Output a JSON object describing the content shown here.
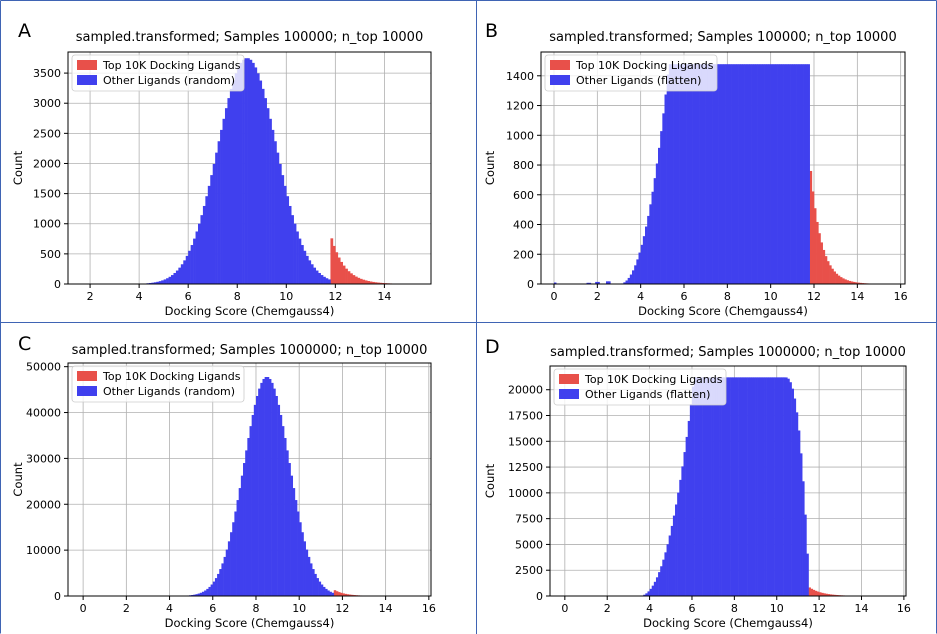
{
  "colors": {
    "top": "#e8504a",
    "other": "#4040ee",
    "grid": "#b0b0b0",
    "frame": "#3f64b4"
  },
  "chart_data": [
    {
      "panel_label": "A",
      "type": "bar",
      "title": "sampled.transformed; Samples 100000; n_top 10000",
      "xlabel": "Docking Score (Chemgauss4)",
      "ylabel": "Count",
      "xlim": [
        1.1,
        15.9
      ],
      "ylim": [
        0,
        3850
      ],
      "xticks": [
        "2",
        "4",
        "6",
        "8",
        "10",
        "12",
        "14"
      ],
      "xtick_values": [
        2,
        4,
        6,
        8,
        10,
        12,
        14
      ],
      "yticks": [
        "0",
        "500",
        "1000",
        "1500",
        "2000",
        "2500",
        "3000",
        "3500"
      ],
      "ytick_values": [
        0,
        500,
        1000,
        1500,
        2000,
        2500,
        3000,
        3500
      ],
      "grid": true,
      "legend_position": "top-left",
      "series": [
        {
          "name": "Top 10K Docking Ligands",
          "color_key": "top",
          "kind": "tail",
          "range": [
            11.8,
            15.2
          ],
          "peak": 830,
          "decay": 0.55
        },
        {
          "name": "Other Ligands (random)",
          "color_key": "other",
          "kind": "gauss",
          "range": [
            4.3,
            11.8
          ],
          "mean": 8.4,
          "sd": 1.2,
          "peak": 3750
        }
      ]
    },
    {
      "panel_label": "B",
      "type": "bar",
      "title": "sampled.transformed; Samples 100000; n_top 10000",
      "xlabel": "Docking Score (Chemgauss4)",
      "ylabel": "Count",
      "xlim": [
        -0.6,
        16.2
      ],
      "ylim": [
        0,
        1560
      ],
      "xticks": [
        "0",
        "2",
        "4",
        "6",
        "8",
        "10",
        "12",
        "14",
        "16"
      ],
      "xtick_values": [
        0,
        2,
        4,
        6,
        8,
        10,
        12,
        14,
        16
      ],
      "yticks": [
        "0",
        "200",
        "400",
        "600",
        "800",
        "1000",
        "1200",
        "1400"
      ],
      "ytick_values": [
        0,
        200,
        400,
        600,
        800,
        1000,
        1200,
        1400
      ],
      "grid": true,
      "legend_position": "top-left",
      "series": [
        {
          "name": "Top 10K Docking Ligands",
          "color_key": "top",
          "kind": "tail",
          "range": [
            11.8,
            15.2
          ],
          "peak": 840,
          "decay": 0.5
        },
        {
          "name": "Other Ligands (flatten)",
          "color_key": "other",
          "kind": "plateau",
          "range": [
            0,
            11.8
          ],
          "plateau": 1478,
          "rise_start": 3.0,
          "rise_end": 5.3,
          "sparse": [
            [
              0.0,
              10
            ],
            [
              1.6,
              8
            ],
            [
              2.0,
              14
            ],
            [
              2.5,
              18
            ]
          ]
        }
      ]
    },
    {
      "panel_label": "C",
      "type": "bar",
      "title": "sampled.transformed; Samples 1000000; n_top 10000",
      "xlabel": "Docking Score (Chemgauss4)",
      "ylabel": "Count",
      "xlim": [
        -0.7,
        16.1
      ],
      "ylim": [
        0,
        50800
      ],
      "xticks": [
        "0",
        "2",
        "4",
        "6",
        "8",
        "10",
        "12",
        "14",
        "16"
      ],
      "xtick_values": [
        0,
        2,
        4,
        6,
        8,
        10,
        12,
        14,
        16
      ],
      "yticks": [
        "0",
        "10000",
        "20000",
        "30000",
        "40000",
        "50000"
      ],
      "ytick_values": [
        0,
        10000,
        20000,
        30000,
        40000,
        50000
      ],
      "grid": true,
      "legend_position": "top-left",
      "series": [
        {
          "name": "Top 10K Docking Ligands",
          "color_key": "top",
          "kind": "tail",
          "range": [
            11.6,
            13.5
          ],
          "peak": 1400,
          "decay": 0.5
        },
        {
          "name": "Other Ligands (random)",
          "color_key": "other",
          "kind": "gauss",
          "range": [
            4.2,
            11.6
          ],
          "mean": 8.5,
          "sd": 1.05,
          "peak": 47800
        }
      ]
    },
    {
      "panel_label": "D",
      "type": "bar",
      "title": "sampled.transformed; Samples 1000000; n_top 10000",
      "xlabel": "Docking Score (Chemgauss4)",
      "ylabel": "Count",
      "xlim": [
        -0.7,
        16.1
      ],
      "ylim": [
        0,
        22300
      ],
      "xticks": [
        "0",
        "2",
        "4",
        "6",
        "8",
        "10",
        "12",
        "14",
        "16"
      ],
      "xtick_values": [
        0,
        2,
        4,
        6,
        8,
        10,
        12,
        14,
        16
      ],
      "yticks": [
        "0",
        "2500",
        "5000",
        "7500",
        "10000",
        "12500",
        "15000",
        "17500",
        "20000"
      ],
      "ytick_values": [
        0,
        2500,
        5000,
        7500,
        10000,
        12500,
        15000,
        17500,
        20000
      ],
      "grid": true,
      "legend_position": "top-left",
      "series": [
        {
          "name": "Top 10K Docking Ligands",
          "color_key": "top",
          "kind": "tail",
          "range": [
            11.5,
            14.5
          ],
          "peak": 900,
          "decay": 0.6
        },
        {
          "name": "Other Ligands (flatten)",
          "color_key": "other",
          "kind": "plateau",
          "range": [
            3.0,
            11.5
          ],
          "plateau": 21200,
          "rise_start": 3.5,
          "rise_end": 6.1,
          "fall_start": 10.4,
          "fall_min": 2000
        }
      ]
    }
  ]
}
